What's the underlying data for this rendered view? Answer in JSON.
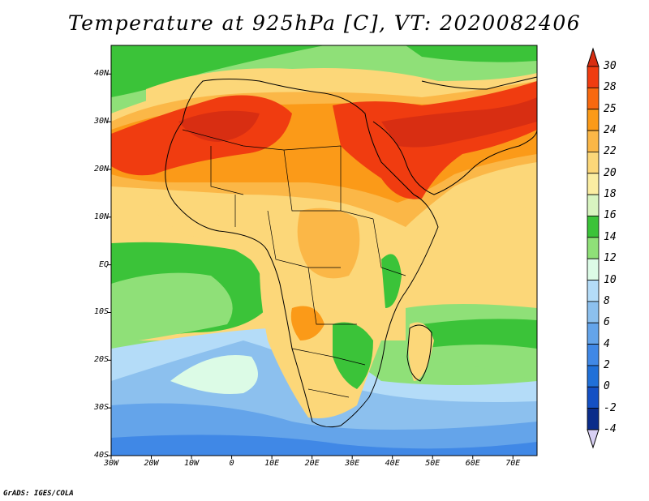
{
  "title": "Temperature at 925hPa [C], VT: 2020082406",
  "footer": "GrADS: IGES/COLA",
  "map": {
    "lon_range": [
      -30,
      76
    ],
    "lat_range": [
      -40,
      46
    ],
    "lat_ticks": [
      {
        "value": 40,
        "label": "40N"
      },
      {
        "value": 30,
        "label": "30N"
      },
      {
        "value": 20,
        "label": "20N"
      },
      {
        "value": 10,
        "label": "10N"
      },
      {
        "value": 0,
        "label": "EQ"
      },
      {
        "value": -10,
        "label": "10S"
      },
      {
        "value": -20,
        "label": "20S"
      },
      {
        "value": -30,
        "label": "30S"
      },
      {
        "value": -40,
        "label": "40S"
      }
    ],
    "lon_ticks": [
      {
        "value": -30,
        "label": "30W"
      },
      {
        "value": -20,
        "label": "20W"
      },
      {
        "value": -10,
        "label": "10W"
      },
      {
        "value": 0,
        "label": "0"
      },
      {
        "value": 10,
        "label": "10E"
      },
      {
        "value": 20,
        "label": "20E"
      },
      {
        "value": 30,
        "label": "30E"
      },
      {
        "value": 40,
        "label": "40E"
      },
      {
        "value": 50,
        "label": "50E"
      },
      {
        "value": 60,
        "label": "60E"
      },
      {
        "value": 70,
        "label": "70E"
      }
    ]
  },
  "colorbar": {
    "levels": [
      "30",
      "28",
      "25",
      "24",
      "22",
      "20",
      "18",
      "16",
      "14",
      "12",
      "10",
      "8",
      "6",
      "4",
      "2",
      "0",
      "-2",
      "-4"
    ],
    "colors": [
      "#f03c10",
      "#f8690f",
      "#fb9a18",
      "#fbb747",
      "#fcd779",
      "#fbeda2",
      "#d8f4c0",
      "#3bc339",
      "#8fe078",
      "#dcfbe6",
      "#b4dcf8",
      "#8cc0ee",
      "#64a4ea",
      "#4088e6",
      "#2070d8",
      "#1450c4",
      "#0a2c8a",
      "#d8d0f4"
    ],
    "top_color": "#d82e12",
    "bottom_color": "#d8d0f4"
  }
}
